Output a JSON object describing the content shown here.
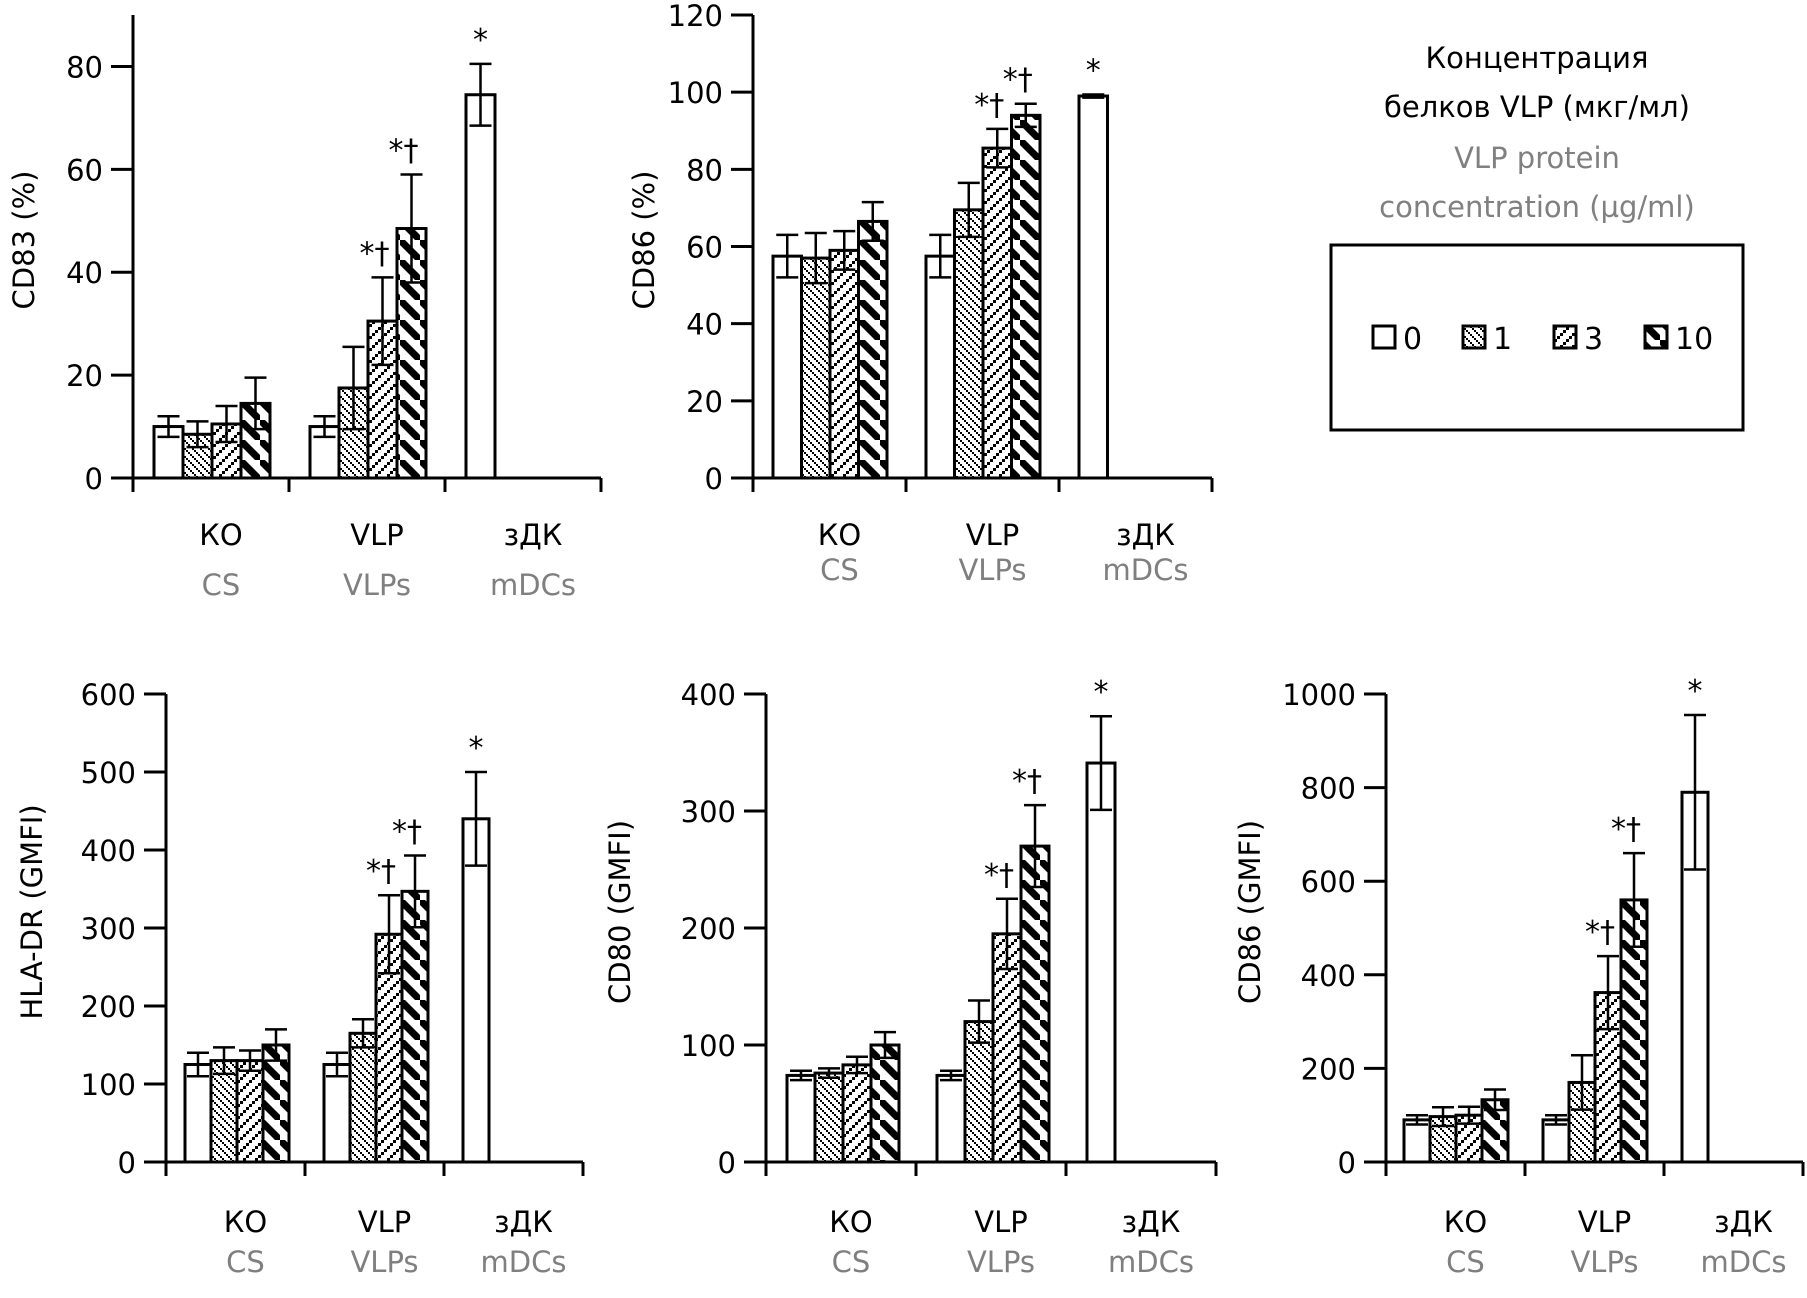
{
  "colors": {
    "ink": "#000000",
    "secondary_text": "#7f7f7f",
    "bar_fill": "#ffffff"
  },
  "legend": {
    "title_ru": [
      "Концентрация",
      "белков VLP (мкг/мл)"
    ],
    "title_en": [
      "VLP protein",
      "concentration (µg/ml)"
    ],
    "items": [
      {
        "label": "0",
        "pattern": "empty"
      },
      {
        "label": "1",
        "pattern": "fine-diagonal-down"
      },
      {
        "label": "3",
        "pattern": "diagonal-up"
      },
      {
        "label": "10",
        "pattern": "thick-diagonal-down"
      }
    ]
  },
  "chart_data": [
    {
      "type": "bar",
      "id": "cd83-percent",
      "ylabel": "CD83 (%)",
      "ylim": [
        0,
        90
      ],
      "yticks": [
        0,
        20,
        40,
        60,
        80
      ],
      "categories": [
        {
          "ru": "КО",
          "en": "CS"
        },
        {
          "ru": "VLP",
          "en": "VLPs"
        },
        {
          "ru": "зДК",
          "en": "mDCs"
        }
      ],
      "groups": [
        {
          "bars": [
            {
              "dose": "0",
              "value": 10,
              "err": 2
            },
            {
              "dose": "1",
              "value": 8.5,
              "err": 2.5
            },
            {
              "dose": "3",
              "value": 10.5,
              "err": 3.5
            },
            {
              "dose": "10",
              "value": 14.5,
              "err": 5
            }
          ]
        },
        {
          "bars": [
            {
              "dose": "0",
              "value": 10,
              "err": 2
            },
            {
              "dose": "1",
              "value": 17.5,
              "err": 8
            },
            {
              "dose": "3",
              "value": 30.5,
              "err": 8.5,
              "sig": "*†"
            },
            {
              "dose": "10",
              "value": 48.5,
              "err": 10.5,
              "sig": "*†"
            }
          ]
        },
        {
          "bars": [
            {
              "dose": "0",
              "value": 74.5,
              "err": 6,
              "sig": "*"
            }
          ]
        }
      ]
    },
    {
      "type": "bar",
      "id": "cd86-percent",
      "ylabel": "CD86 (%)",
      "ylim": [
        0,
        120
      ],
      "yticks": [
        0,
        20,
        40,
        60,
        80,
        100,
        120
      ],
      "categories": [
        {
          "ru": "КО",
          "en": "CS"
        },
        {
          "ru": "VLP",
          "en": "VLPs"
        },
        {
          "ru": "зДК",
          "en": "mDCs"
        }
      ],
      "groups": [
        {
          "bars": [
            {
              "dose": "0",
              "value": 57.5,
              "err": 5.5
            },
            {
              "dose": "1",
              "value": 57,
              "err": 6.5
            },
            {
              "dose": "3",
              "value": 59,
              "err": 5
            },
            {
              "dose": "10",
              "value": 66.5,
              "err": 5
            }
          ]
        },
        {
          "bars": [
            {
              "dose": "0",
              "value": 57.5,
              "err": 5.5
            },
            {
              "dose": "1",
              "value": 69.5,
              "err": 7
            },
            {
              "dose": "3",
              "value": 85.5,
              "err": 5,
              "sig": "*†"
            },
            {
              "dose": "10",
              "value": 94,
              "err": 3,
              "sig": "*†"
            }
          ]
        },
        {
          "bars": [
            {
              "dose": "0",
              "value": 99,
              "err": 0.4,
              "sig": "*"
            }
          ]
        }
      ]
    },
    {
      "type": "bar",
      "id": "hla-dr-gmfi",
      "ylabel": "HLA-DR (GMFI)",
      "ylim": [
        0,
        600
      ],
      "yticks": [
        0,
        100,
        200,
        300,
        400,
        500,
        600
      ],
      "categories": [
        {
          "ru": "КО",
          "en": "CS"
        },
        {
          "ru": "VLP",
          "en": "VLPs"
        },
        {
          "ru": "зДК",
          "en": "mDCs"
        }
      ],
      "groups": [
        {
          "bars": [
            {
              "dose": "0",
              "value": 125,
              "err": 15
            },
            {
              "dose": "1",
              "value": 130,
              "err": 17
            },
            {
              "dose": "3",
              "value": 130,
              "err": 13
            },
            {
              "dose": "10",
              "value": 150,
              "err": 20
            }
          ]
        },
        {
          "bars": [
            {
              "dose": "0",
              "value": 125,
              "err": 15
            },
            {
              "dose": "1",
              "value": 165,
              "err": 18
            },
            {
              "dose": "3",
              "value": 292,
              "err": 50,
              "sig": "*†"
            },
            {
              "dose": "10",
              "value": 347,
              "err": 46,
              "sig": "*†"
            }
          ]
        },
        {
          "bars": [
            {
              "dose": "0",
              "value": 440,
              "err": 60,
              "sig": "*"
            }
          ]
        }
      ]
    },
    {
      "type": "bar",
      "id": "cd80-gmfi",
      "ylabel": "CD80 (GMFI)",
      "ylim": [
        0,
        400
      ],
      "yticks": [
        0,
        100,
        200,
        300,
        400
      ],
      "categories": [
        {
          "ru": "КО",
          "en": "CS"
        },
        {
          "ru": "VLP",
          "en": "VLPs"
        },
        {
          "ru": "зДК",
          "en": "mDCs"
        }
      ],
      "groups": [
        {
          "bars": [
            {
              "dose": "0",
              "value": 74,
              "err": 4
            },
            {
              "dose": "1",
              "value": 76,
              "err": 4
            },
            {
              "dose": "3",
              "value": 83,
              "err": 7
            },
            {
              "dose": "10",
              "value": 100,
              "err": 11
            }
          ]
        },
        {
          "bars": [
            {
              "dose": "0",
              "value": 74,
              "err": 4
            },
            {
              "dose": "1",
              "value": 120,
              "err": 18
            },
            {
              "dose": "3",
              "value": 195,
              "err": 30,
              "sig": "*†"
            },
            {
              "dose": "10",
              "value": 270,
              "err": 35,
              "sig": "*†"
            }
          ]
        },
        {
          "bars": [
            {
              "dose": "0",
              "value": 341,
              "err": 40,
              "sig": "*"
            }
          ]
        }
      ]
    },
    {
      "type": "bar",
      "id": "cd86-gmfi",
      "ylabel": "CD86 (GMFI)",
      "ylim": [
        0,
        1000
      ],
      "yticks": [
        0,
        200,
        400,
        600,
        800,
        1000
      ],
      "categories": [
        {
          "ru": "КО",
          "en": "CS"
        },
        {
          "ru": "VLP",
          "en": "VLPs"
        },
        {
          "ru": "зДК",
          "en": "mDCs"
        }
      ],
      "groups": [
        {
          "bars": [
            {
              "dose": "0",
              "value": 90,
              "err": 10
            },
            {
              "dose": "1",
              "value": 97,
              "err": 20
            },
            {
              "dose": "3",
              "value": 100,
              "err": 18
            },
            {
              "dose": "10",
              "value": 133,
              "err": 22
            }
          ]
        },
        {
          "bars": [
            {
              "dose": "0",
              "value": 90,
              "err": 10
            },
            {
              "dose": "1",
              "value": 170,
              "err": 58
            },
            {
              "dose": "3",
              "value": 362,
              "err": 78,
              "sig": "*†"
            },
            {
              "dose": "10",
              "value": 560,
              "err": 100,
              "sig": "*†"
            }
          ]
        },
        {
          "bars": [
            {
              "dose": "0",
              "value": 790,
              "err": 165,
              "sig": "*"
            }
          ]
        }
      ]
    }
  ]
}
